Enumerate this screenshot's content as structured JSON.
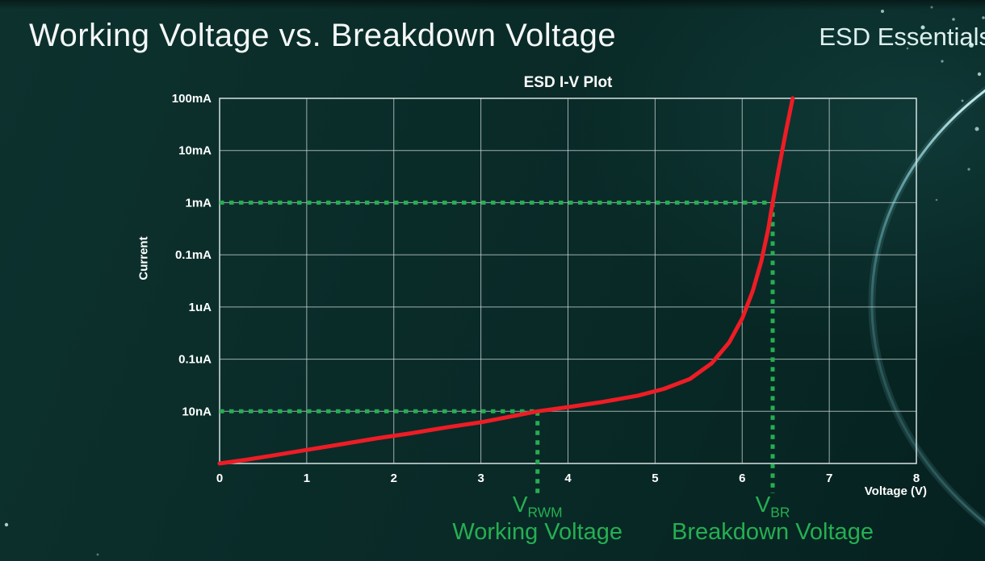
{
  "page": {
    "title": "Working Voltage vs. Breakdown Voltage",
    "brand": "ESD Essentials"
  },
  "chart_data": {
    "type": "line",
    "title": "ESD I-V Plot",
    "xlabel": "Voltage (V)",
    "ylabel": "Current",
    "x_range": [
      0,
      8
    ],
    "x_ticks": [
      "0",
      "1",
      "2",
      "3",
      "4",
      "5",
      "6",
      "7",
      "8"
    ],
    "y_scale": "log-decades",
    "y_tick_labels": [
      "100mA",
      "10mA",
      "1mA",
      "0.1mA",
      "1uA",
      "0.1uA",
      "10nA"
    ],
    "grid": true,
    "legend": "none",
    "colors": {
      "curve": "#ee1c25",
      "marker": "#26af52",
      "grid": "#c6d2d2"
    },
    "series": [
      {
        "name": "ESD diode I-V curve",
        "color": "#ee1c25",
        "points_encoding": "[voltage_V, rows_below_100mA_line]; row 2 = 1mA, row 6 = 10nA, row 7 = x-axis",
        "points": [
          [
            0,
            7
          ],
          [
            0.3,
            6.93
          ],
          [
            0.6,
            6.85
          ],
          [
            1,
            6.74
          ],
          [
            1.4,
            6.63
          ],
          [
            1.8,
            6.52
          ],
          [
            2.2,
            6.42
          ],
          [
            2.6,
            6.31
          ],
          [
            3,
            6.21
          ],
          [
            3.4,
            6.08
          ],
          [
            3.65,
            6
          ],
          [
            4,
            5.92
          ],
          [
            4.4,
            5.82
          ],
          [
            4.8,
            5.7
          ],
          [
            5.1,
            5.57
          ],
          [
            5.4,
            5.38
          ],
          [
            5.65,
            5.08
          ],
          [
            5.85,
            4.68
          ],
          [
            6,
            4.22
          ],
          [
            6.12,
            3.7
          ],
          [
            6.22,
            3.12
          ],
          [
            6.3,
            2.5
          ],
          [
            6.35,
            2
          ],
          [
            6.42,
            1.35
          ],
          [
            6.5,
            0.65
          ],
          [
            6.58,
            0
          ]
        ]
      }
    ],
    "key_points": [
      {
        "id": "working-voltage",
        "symbol_main": "V",
        "symbol_sub": "RWM",
        "caption": "Working Voltage",
        "voltage_v": 3.65,
        "current_label": "10nA"
      },
      {
        "id": "breakdown-voltage",
        "symbol_main": "V",
        "symbol_sub": "BR",
        "caption": "Breakdown Voltage",
        "voltage_v": 6.35,
        "current_label": "1mA"
      }
    ]
  }
}
